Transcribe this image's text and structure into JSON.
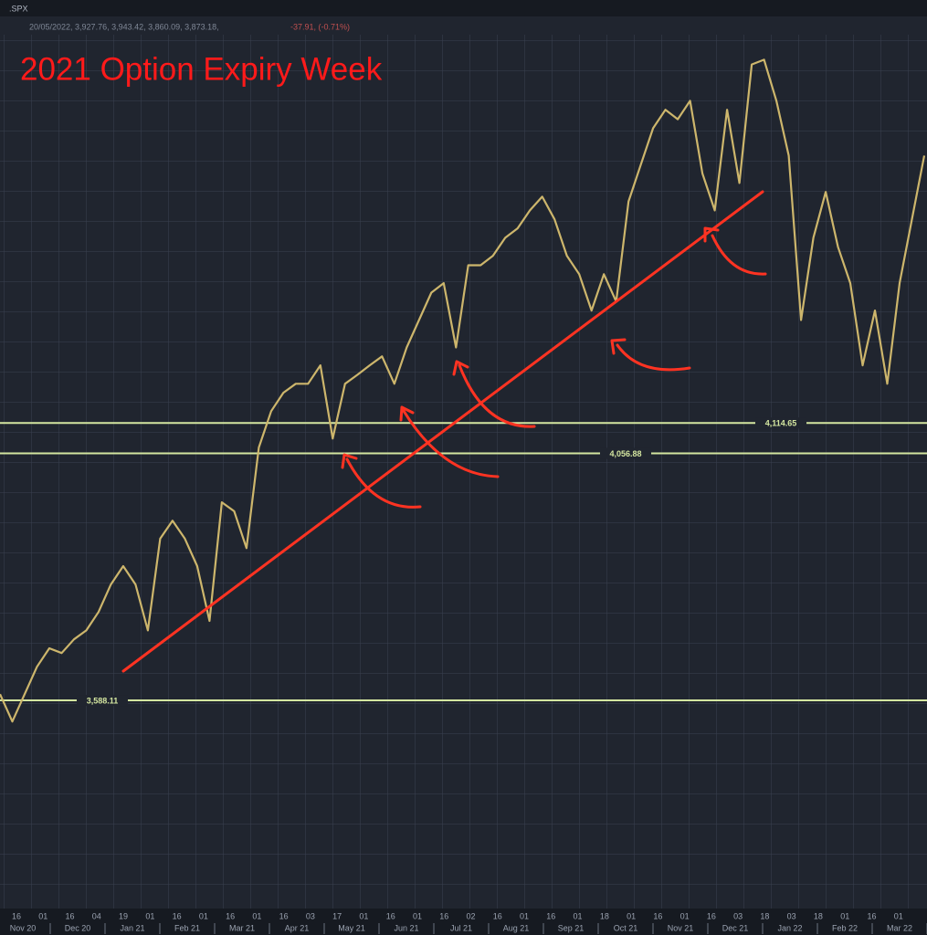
{
  "chart_data": {
    "type": "line",
    "symbol": ".SPX",
    "header": "20/05/2022, 3,927.76, 3,943.42, 3,860.09, 3,873.18,",
    "change": "-37.91, (-0.71%)",
    "title": "2021 Option Expiry Week",
    "ylim": [
      3200,
      4900
    ],
    "color": "#cdb66c",
    "values": [
      3600,
      3548,
      3600,
      3652,
      3687,
      3678,
      3704,
      3721,
      3756,
      3808,
      3843,
      3808,
      3721,
      3895,
      3929,
      3895,
      3843,
      3739,
      3964,
      3947,
      3877,
      4068,
      4137,
      4172,
      4189,
      4189,
      4224,
      4085,
      4189,
      4206,
      4224,
      4241,
      4189,
      4258,
      4310,
      4362,
      4380,
      4258,
      4414,
      4414,
      4432,
      4466,
      4484,
      4518,
      4544,
      4501,
      4432,
      4397,
      4328,
      4397,
      4345,
      4535,
      4605,
      4674,
      4709,
      4691,
      4726,
      4588,
      4518,
      4709,
      4570,
      4795,
      4804,
      4726,
      4622,
      4310,
      4466,
      4553,
      4449,
      4380,
      4224,
      4328,
      4189,
      4380,
      4501,
      4622
    ],
    "levels": [
      {
        "value": 4114.65,
        "label": "4,114.65"
      },
      {
        "value": 4056.88,
        "label": "4,056.88"
      },
      {
        "value": 3588.11,
        "label": "3,588.11"
      }
    ],
    "day_labels": [
      "16",
      "01",
      "16",
      "04",
      "19",
      "01",
      "16",
      "01",
      "16",
      "01",
      "16",
      "03",
      "17",
      "01",
      "16",
      "01",
      "16",
      "02",
      "16",
      "01",
      "16",
      "01",
      "18",
      "01",
      "16",
      "01",
      "16",
      "03",
      "18",
      "03",
      "18",
      "01",
      "16",
      "01"
    ],
    "month_labels": [
      "Nov 20",
      "Dec 20",
      "Jan 21",
      "Feb 21",
      "Mar 21",
      "Apr 21",
      "May 21",
      "Jun 21",
      "Jul 21",
      "Aug 21",
      "Sep 21",
      "Oct 21",
      "Nov 21",
      "Dec 21",
      "Jan 22",
      "Feb 22",
      "Mar 22"
    ]
  }
}
